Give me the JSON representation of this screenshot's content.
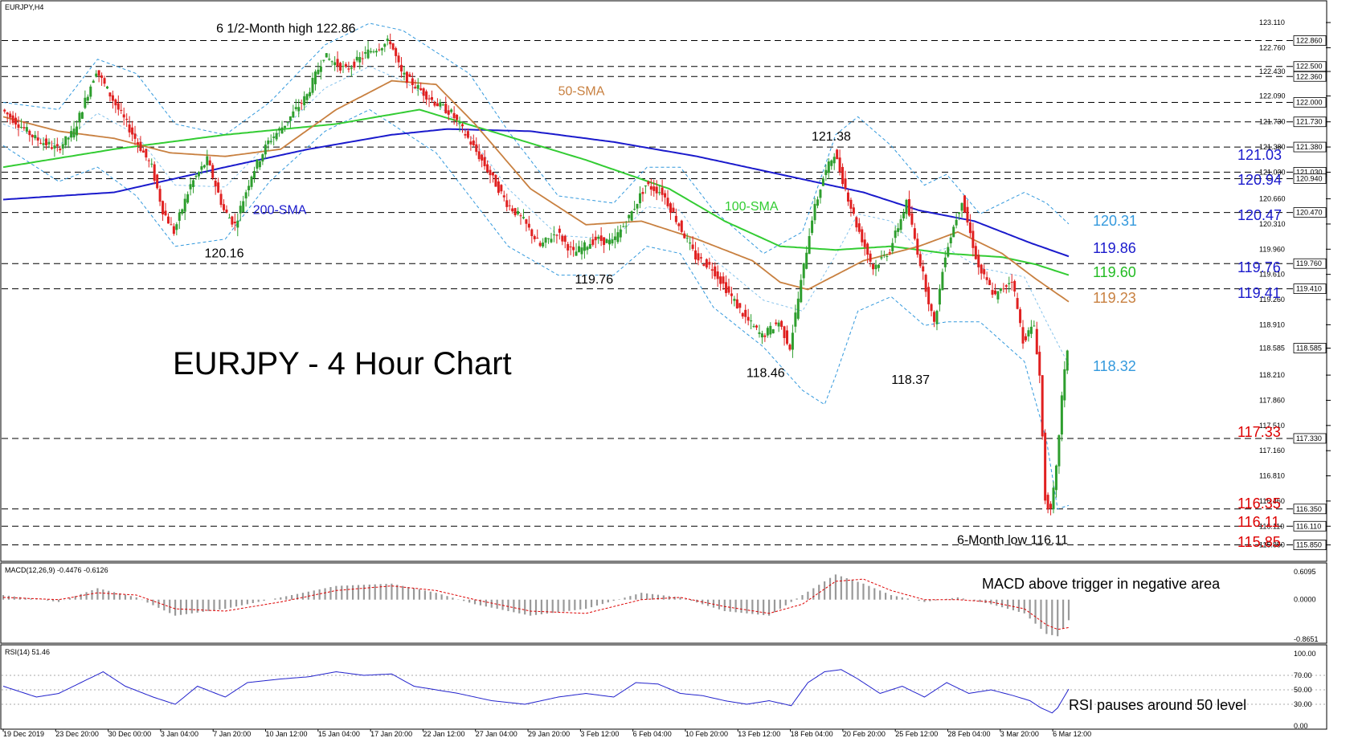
{
  "chart_data": {
    "type": "candlestick",
    "symbol_label": "EURJPY,H4",
    "title": "EURJPY - 4 Hour Chart",
    "ylim": [
      115.7,
      123.2
    ],
    "colors": {
      "bull": "#2e9e2e",
      "bear": "#e02020",
      "sma50": "#c88040",
      "sma100": "#33cc33",
      "sma200": "#1a1acc",
      "bollinger": "#3399dd",
      "grid_dash": "#000000",
      "rsi": "#2222cc",
      "macd_hist": "#999999",
      "macd_signal": "#dd0000"
    },
    "y_ticks": [
      "123.110",
      "122.760",
      "122.430",
      "122.090",
      "121.730",
      "121.380",
      "121.030",
      "120.660",
      "120.310",
      "119.960",
      "119.610",
      "119.260",
      "118.910",
      "118.585",
      "118.210",
      "117.860",
      "117.510",
      "117.160",
      "116.810",
      "116.460",
      "116.110",
      "115.850"
    ],
    "hlines": [
      {
        "value": 122.86,
        "tag": "122.860"
      },
      {
        "value": 122.5,
        "tag": "122.500"
      },
      {
        "value": 122.36,
        "tag": "122.360"
      },
      {
        "value": 122.0,
        "tag": "122.000"
      },
      {
        "value": 121.73,
        "tag": "121.730"
      },
      {
        "value": 121.38,
        "tag": "121.380"
      },
      {
        "value": 121.03,
        "tag": "121.030"
      },
      {
        "value": 120.94,
        "tag": "120.940"
      },
      {
        "value": 120.47,
        "tag": "120.470"
      },
      {
        "value": 119.76,
        "tag": "119.760"
      },
      {
        "value": 119.41,
        "tag": "119.410"
      },
      {
        "value": 117.33,
        "tag": "117.330"
      },
      {
        "value": 116.35,
        "tag": "116.350"
      },
      {
        "value": 116.11,
        "tag": "116.110"
      },
      {
        "value": 115.85,
        "tag": "115.850"
      }
    ],
    "current_price_tag": "118.585",
    "current_price": 118.585,
    "x_labels": [
      "19 Dec 2019",
      "23 Dec 20:00",
      "30 Dec 00:00",
      "3 Jan 04:00",
      "7 Jan 20:00",
      "10 Jan 12:00",
      "15 Jan 04:00",
      "17 Jan 20:00",
      "22 Jan 12:00",
      "27 Jan 04:00",
      "29 Jan 20:00",
      "3 Feb 12:00",
      "6 Feb 04:00",
      "10 Feb 20:00",
      "13 Feb 12:00",
      "18 Feb 04:00",
      "20 Feb 20:00",
      "25 Feb 12:00",
      "28 Feb 04:00",
      "3 Mar 20:00",
      "6 Mar 12:00"
    ],
    "price_path": [
      [
        0,
        121.9
      ],
      [
        6,
        121.5
      ],
      [
        10,
        121.35
      ],
      [
        13,
        121.6
      ],
      [
        17,
        122.45
      ],
      [
        21,
        121.9
      ],
      [
        24,
        121.5
      ],
      [
        27,
        121.1
      ],
      [
        29,
        120.5
      ],
      [
        31,
        120.2
      ],
      [
        34,
        120.85
      ],
      [
        37,
        121.2
      ],
      [
        40,
        120.5
      ],
      [
        42,
        120.3
      ],
      [
        45,
        121.0
      ],
      [
        48,
        121.45
      ],
      [
        51,
        121.7
      ],
      [
        55,
        122.1
      ],
      [
        58,
        122.65
      ],
      [
        62,
        122.45
      ],
      [
        66,
        122.7
      ],
      [
        70,
        122.85
      ],
      [
        72,
        122.4
      ],
      [
        75,
        122.2
      ],
      [
        78,
        122.0
      ],
      [
        81,
        121.85
      ],
      [
        84,
        121.5
      ],
      [
        88,
        121.0
      ],
      [
        91,
        120.6
      ],
      [
        94,
        120.35
      ],
      [
        97,
        120.0
      ],
      [
        100,
        120.2
      ],
      [
        103,
        119.9
      ],
      [
        107,
        120.1
      ],
      [
        110,
        120.05
      ],
      [
        113,
        120.4
      ],
      [
        116,
        120.85
      ],
      [
        119,
        120.75
      ],
      [
        122,
        120.3
      ],
      [
        125,
        119.85
      ],
      [
        128,
        119.7
      ],
      [
        131,
        119.35
      ],
      [
        134,
        119.0
      ],
      [
        137,
        118.75
      ],
      [
        140,
        118.95
      ],
      [
        142,
        118.6
      ],
      [
        144,
        119.5
      ],
      [
        146,
        120.4
      ],
      [
        148,
        120.95
      ],
      [
        150,
        121.3
      ],
      [
        152,
        120.8
      ],
      [
        154,
        120.3
      ],
      [
        157,
        119.7
      ],
      [
        160,
        119.95
      ],
      [
        163,
        120.6
      ],
      [
        166,
        119.6
      ],
      [
        168,
        118.9
      ],
      [
        170,
        119.9
      ],
      [
        173,
        120.65
      ],
      [
        176,
        119.7
      ],
      [
        179,
        119.3
      ],
      [
        182,
        119.55
      ],
      [
        184,
        118.7
      ],
      [
        186,
        118.9
      ],
      [
        187,
        118.2
      ],
      [
        188,
        116.5
      ],
      [
        189,
        116.3
      ],
      [
        190,
        116.9
      ],
      [
        191,
        117.9
      ],
      [
        192,
        118.58
      ]
    ],
    "sma50": [
      [
        0,
        121.8
      ],
      [
        10,
        121.6
      ],
      [
        20,
        121.5
      ],
      [
        30,
        121.3
      ],
      [
        40,
        121.25
      ],
      [
        50,
        121.35
      ],
      [
        60,
        121.9
      ],
      [
        70,
        122.3
      ],
      [
        78,
        122.25
      ],
      [
        85,
        121.7
      ],
      [
        95,
        120.8
      ],
      [
        105,
        120.3
      ],
      [
        115,
        120.35
      ],
      [
        125,
        120.1
      ],
      [
        135,
        119.8
      ],
      [
        140,
        119.5
      ],
      [
        145,
        119.4
      ],
      [
        155,
        119.8
      ],
      [
        165,
        120.0
      ],
      [
        172,
        120.2
      ],
      [
        180,
        119.9
      ],
      [
        186,
        119.55
      ],
      [
        192,
        119.23
      ]
    ],
    "sma100": [
      [
        0,
        121.1
      ],
      [
        20,
        121.35
      ],
      [
        40,
        121.55
      ],
      [
        60,
        121.7
      ],
      [
        75,
        121.9
      ],
      [
        90,
        121.55
      ],
      [
        105,
        121.2
      ],
      [
        120,
        120.8
      ],
      [
        130,
        120.35
      ],
      [
        140,
        120.0
      ],
      [
        150,
        119.95
      ],
      [
        160,
        120.0
      ],
      [
        170,
        119.9
      ],
      [
        180,
        119.85
      ],
      [
        186,
        119.75
      ],
      [
        192,
        119.6
      ]
    ],
    "sma200": [
      [
        0,
        120.65
      ],
      [
        20,
        120.75
      ],
      [
        40,
        121.1
      ],
      [
        55,
        121.35
      ],
      [
        70,
        121.55
      ],
      [
        80,
        121.63
      ],
      [
        95,
        121.6
      ],
      [
        110,
        121.45
      ],
      [
        125,
        121.25
      ],
      [
        140,
        121.0
      ],
      [
        155,
        120.75
      ],
      [
        165,
        120.5
      ],
      [
        175,
        120.35
      ],
      [
        185,
        120.05
      ],
      [
        192,
        119.86
      ]
    ],
    "boll_upper": [
      [
        0,
        122.0
      ],
      [
        10,
        121.9
      ],
      [
        17,
        122.6
      ],
      [
        24,
        122.4
      ],
      [
        31,
        121.7
      ],
      [
        40,
        121.55
      ],
      [
        48,
        122.0
      ],
      [
        58,
        122.8
      ],
      [
        66,
        123.1
      ],
      [
        72,
        123.0
      ],
      [
        78,
        122.7
      ],
      [
        84,
        122.4
      ],
      [
        91,
        121.6
      ],
      [
        100,
        120.7
      ],
      [
        110,
        120.6
      ],
      [
        116,
        121.1
      ],
      [
        122,
        121.1
      ],
      [
        128,
        120.5
      ],
      [
        137,
        119.9
      ],
      [
        144,
        120.2
      ],
      [
        150,
        121.55
      ],
      [
        154,
        121.8
      ],
      [
        160,
        121.4
      ],
      [
        166,
        120.85
      ],
      [
        170,
        121.0
      ],
      [
        176,
        120.45
      ],
      [
        184,
        120.75
      ],
      [
        188,
        120.6
      ],
      [
        192,
        120.31
      ]
    ],
    "boll_lower": [
      [
        0,
        121.4
      ],
      [
        10,
        120.9
      ],
      [
        17,
        121.1
      ],
      [
        24,
        120.7
      ],
      [
        31,
        120.0
      ],
      [
        40,
        120.1
      ],
      [
        48,
        120.9
      ],
      [
        58,
        121.6
      ],
      [
        66,
        121.9
      ],
      [
        72,
        121.6
      ],
      [
        78,
        121.3
      ],
      [
        84,
        120.7
      ],
      [
        91,
        120.0
      ],
      [
        100,
        119.6
      ],
      [
        110,
        119.6
      ],
      [
        116,
        120.0
      ],
      [
        122,
        119.9
      ],
      [
        128,
        119.15
      ],
      [
        137,
        118.6
      ],
      [
        144,
        118.0
      ],
      [
        148,
        117.8
      ],
      [
        150,
        118.2
      ],
      [
        154,
        119.1
      ],
      [
        160,
        119.3
      ],
      [
        166,
        118.9
      ],
      [
        170,
        118.95
      ],
      [
        176,
        118.95
      ],
      [
        184,
        118.4
      ],
      [
        188,
        117.3
      ],
      [
        190,
        116.35
      ],
      [
        192,
        116.4
      ]
    ],
    "annotations": [
      {
        "text": "6 1/2-Month high 122.86",
        "x": 70,
        "y": 122.86,
        "color": "#000000"
      },
      {
        "text": "120.16",
        "x": 37,
        "y": 120.16,
        "color": "#000000"
      },
      {
        "text": "50-SMA",
        "color": "#c88040"
      },
      {
        "text": "200-SMA",
        "color": "#1a1acc"
      },
      {
        "text": "100-SMA",
        "color": "#33cc33"
      },
      {
        "text": "119.76",
        "color": "#000000"
      },
      {
        "text": "121.38",
        "color": "#000000"
      },
      {
        "text": "118.46",
        "color": "#000000"
      },
      {
        "text": "118.37",
        "color": "#000000"
      },
      {
        "text": "6-Month low 116.11",
        "color": "#000000"
      }
    ],
    "right_labels": [
      {
        "text": "121.03",
        "color": "#1a1acc"
      },
      {
        "text": "120.94",
        "color": "#1a1acc"
      },
      {
        "text": "120.47",
        "color": "#1a1acc"
      },
      {
        "text": "120.31",
        "color": "#3399dd"
      },
      {
        "text": "119.86",
        "color": "#1a1acc"
      },
      {
        "text": "119.76",
        "color": "#1a1acc"
      },
      {
        "text": "119.60",
        "color": "#22bb22"
      },
      {
        "text": "119.41",
        "color": "#1a1acc"
      },
      {
        "text": "119.23",
        "color": "#c88040"
      },
      {
        "text": "118.32",
        "color": "#3399dd"
      },
      {
        "text": "117.33",
        "color": "#dd0000"
      },
      {
        "text": "116.35",
        "color": "#dd0000"
      },
      {
        "text": "116.11",
        "color": "#dd0000"
      },
      {
        "text": "115.85",
        "color": "#dd0000"
      }
    ],
    "macd": {
      "label": "MACD(12,26,9) -0.4476 -0.6126",
      "ylim": [
        -0.8651,
        0.6095
      ],
      "ticks": [
        "0.6095",
        "0.0000",
        "-0.8651"
      ],
      "annotation": "MACD above trigger in negative area",
      "hist": [
        [
          0,
          0.1
        ],
        [
          10,
          -0.05
        ],
        [
          17,
          0.25
        ],
        [
          24,
          0.05
        ],
        [
          31,
          -0.35
        ],
        [
          40,
          -0.2
        ],
        [
          50,
          0.05
        ],
        [
          60,
          0.3
        ],
        [
          70,
          0.35
        ],
        [
          78,
          0.15
        ],
        [
          85,
          -0.1
        ],
        [
          95,
          -0.35
        ],
        [
          105,
          -0.2
        ],
        [
          115,
          0.15
        ],
        [
          122,
          0.05
        ],
        [
          130,
          -0.25
        ],
        [
          138,
          -0.35
        ],
        [
          144,
          0.1
        ],
        [
          150,
          0.55
        ],
        [
          155,
          0.35
        ],
        [
          160,
          0.1
        ],
        [
          166,
          -0.05
        ],
        [
          172,
          0.05
        ],
        [
          178,
          -0.1
        ],
        [
          184,
          -0.3
        ],
        [
          188,
          -0.75
        ],
        [
          190,
          -0.8
        ],
        [
          192,
          -0.45
        ]
      ],
      "signal": [
        [
          0,
          0.05
        ],
        [
          10,
          0.0
        ],
        [
          17,
          0.15
        ],
        [
          24,
          0.1
        ],
        [
          31,
          -0.2
        ],
        [
          40,
          -0.25
        ],
        [
          50,
          -0.05
        ],
        [
          60,
          0.2
        ],
        [
          70,
          0.3
        ],
        [
          78,
          0.2
        ],
        [
          85,
          0.0
        ],
        [
          95,
          -0.25
        ],
        [
          105,
          -0.3
        ],
        [
          115,
          0.0
        ],
        [
          122,
          0.05
        ],
        [
          130,
          -0.15
        ],
        [
          138,
          -0.3
        ],
        [
          144,
          -0.1
        ],
        [
          150,
          0.4
        ],
        [
          155,
          0.45
        ],
        [
          160,
          0.2
        ],
        [
          166,
          0.0
        ],
        [
          172,
          0.0
        ],
        [
          178,
          -0.05
        ],
        [
          184,
          -0.2
        ],
        [
          188,
          -0.55
        ],
        [
          190,
          -0.65
        ],
        [
          192,
          -0.61
        ]
      ]
    },
    "rsi": {
      "label": "RSI(14) 51.46",
      "ylim": [
        0,
        100
      ],
      "ticks": [
        "100.00",
        "70.00",
        "50.00",
        "30.00",
        "0.00"
      ],
      "annotation": "RSI pauses around 50 level",
      "values": [
        [
          0,
          55
        ],
        [
          6,
          40
        ],
        [
          10,
          45
        ],
        [
          14,
          60
        ],
        [
          18,
          75
        ],
        [
          22,
          55
        ],
        [
          27,
          40
        ],
        [
          31,
          30
        ],
        [
          35,
          55
        ],
        [
          40,
          40
        ],
        [
          44,
          60
        ],
        [
          50,
          65
        ],
        [
          55,
          68
        ],
        [
          60,
          75
        ],
        [
          65,
          70
        ],
        [
          70,
          72
        ],
        [
          74,
          55
        ],
        [
          78,
          50
        ],
        [
          82,
          45
        ],
        [
          88,
          35
        ],
        [
          94,
          30
        ],
        [
          100,
          40
        ],
        [
          105,
          45
        ],
        [
          110,
          40
        ],
        [
          114,
          60
        ],
        [
          118,
          58
        ],
        [
          122,
          45
        ],
        [
          126,
          42
        ],
        [
          130,
          35
        ],
        [
          134,
          30
        ],
        [
          138,
          35
        ],
        [
          142,
          28
        ],
        [
          145,
          60
        ],
        [
          148,
          75
        ],
        [
          151,
          78
        ],
        [
          154,
          65
        ],
        [
          158,
          45
        ],
        [
          162,
          55
        ],
        [
          166,
          40
        ],
        [
          170,
          60
        ],
        [
          174,
          45
        ],
        [
          178,
          50
        ],
        [
          182,
          42
        ],
        [
          185,
          35
        ],
        [
          187,
          25
        ],
        [
          189,
          18
        ],
        [
          190,
          25
        ],
        [
          192,
          51
        ]
      ]
    }
  }
}
